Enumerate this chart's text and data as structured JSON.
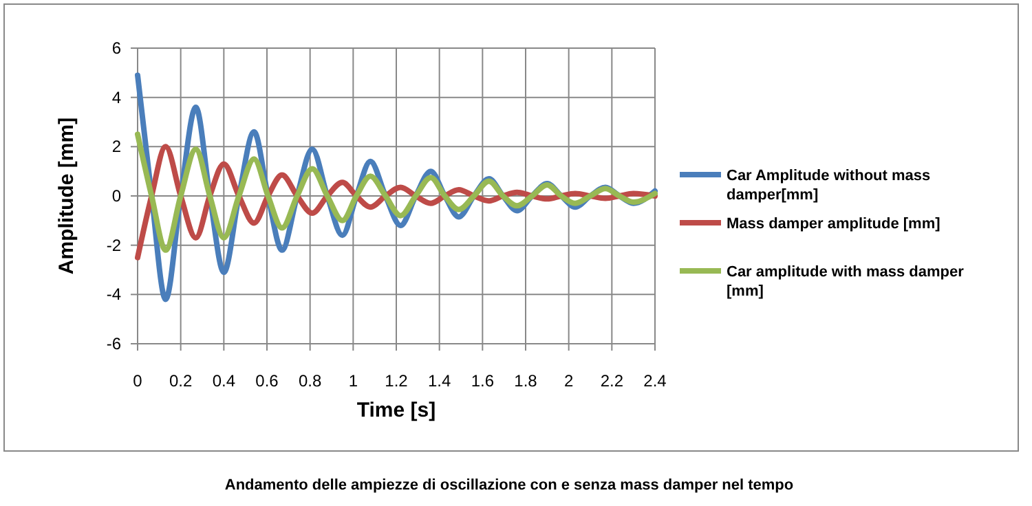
{
  "chart_data": {
    "type": "line",
    "xlabel": "Time [s]",
    "ylabel": "Amplitude [mm]",
    "annotations": [
      "Andamento delle ampiezze di oscillazione con e senza mass damper nel tempo"
    ],
    "x": [
      0,
      0.065,
      0.13,
      0.2,
      0.27,
      0.335,
      0.4,
      0.47,
      0.54,
      0.605,
      0.67,
      0.74,
      0.81,
      0.88,
      0.95,
      1.015,
      1.08,
      1.15,
      1.22,
      1.29,
      1.36,
      1.425,
      1.49,
      1.56,
      1.63,
      1.695,
      1.76,
      1.83,
      1.9,
      1.965,
      2.03,
      2.1,
      2.17,
      2.235,
      2.3,
      2.4
    ],
    "series": [
      {
        "name": "Car Amplitude without mass damper[mm]",
        "color": "#4a7ebb",
        "values": [
          4.9,
          0,
          -4.2,
          0,
          3.6,
          0,
          -3.1,
          0,
          2.6,
          0,
          -2.2,
          0,
          1.9,
          0,
          -1.6,
          0,
          1.4,
          0,
          -1.2,
          0,
          1.0,
          0,
          -0.85,
          0,
          0.7,
          0,
          -0.6,
          0,
          0.5,
          0,
          -0.45,
          0,
          0.35,
          0,
          -0.3,
          0.2
        ]
      },
      {
        "name": "Mass damper amplitude [mm]",
        "color": "#be4b48",
        "values": [
          -2.5,
          0,
          2.0,
          0,
          -1.7,
          0,
          1.3,
          0,
          -1.1,
          0,
          0.85,
          0,
          -0.7,
          0,
          0.55,
          0,
          -0.45,
          0,
          0.35,
          0,
          -0.3,
          0,
          0.25,
          0,
          -0.2,
          0,
          0.15,
          0,
          -0.12,
          0,
          0.1,
          0,
          -0.1,
          0,
          0.1,
          0
        ]
      },
      {
        "name": "Car amplitude with mass damper [mm]",
        "color": "#98b954",
        "values": [
          2.5,
          0,
          -2.2,
          0,
          1.9,
          0,
          -1.7,
          0,
          1.5,
          0,
          -1.3,
          0,
          1.1,
          0,
          -1.0,
          0,
          0.8,
          0,
          -0.8,
          0,
          0.75,
          0,
          -0.55,
          0,
          0.6,
          0,
          -0.4,
          0,
          0.45,
          0,
          -0.3,
          0,
          0.3,
          0,
          -0.25,
          0.1
        ]
      }
    ],
    "xlim": [
      0,
      2.4
    ],
    "xticks": [
      0,
      0.2,
      0.4,
      0.6,
      0.8,
      1,
      1.2,
      1.4,
      1.6,
      1.8,
      2,
      2.2,
      2.4
    ],
    "ylim": [
      -6,
      6
    ],
    "yticks": [
      -6,
      -4,
      -2,
      0,
      2,
      4,
      6
    ],
    "grid": true,
    "legend": "right",
    "marker": "none",
    "line_style": "solid"
  }
}
